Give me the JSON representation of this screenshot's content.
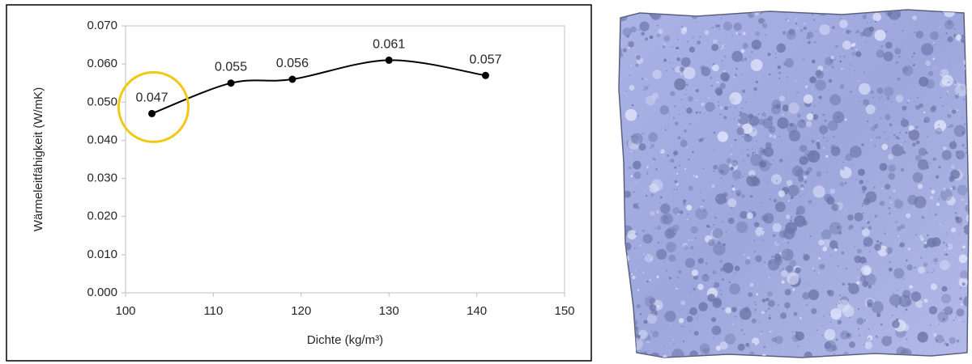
{
  "chart_data": {
    "type": "line",
    "x_label": "Dichte (kg/m³)",
    "y_label": "Wärmeleitfähigkeit (W/mK)",
    "x": [
      103,
      112,
      119,
      130,
      141
    ],
    "values": [
      0.047,
      0.055,
      0.056,
      0.061,
      0.057
    ],
    "color": "#000000",
    "smooth": true,
    "xlim": [
      100,
      150
    ],
    "xticks": [
      100,
      110,
      120,
      130,
      140,
      150
    ],
    "ylim": [
      0,
      0.07
    ],
    "yticks": [
      {
        "value": 0,
        "label": "0.000"
      },
      {
        "value": 0.01,
        "label": "0.010"
      },
      {
        "value": 0.02,
        "label": "0.020"
      },
      {
        "value": 0.03,
        "label": "0.030"
      },
      {
        "value": 0.04,
        "label": "0.040"
      },
      {
        "value": 0.05,
        "label": "0.050"
      },
      {
        "value": 0.06,
        "label": "0.060"
      },
      {
        "value": 0.07,
        "label": "0.070"
      }
    ],
    "grid": false
  }
}
